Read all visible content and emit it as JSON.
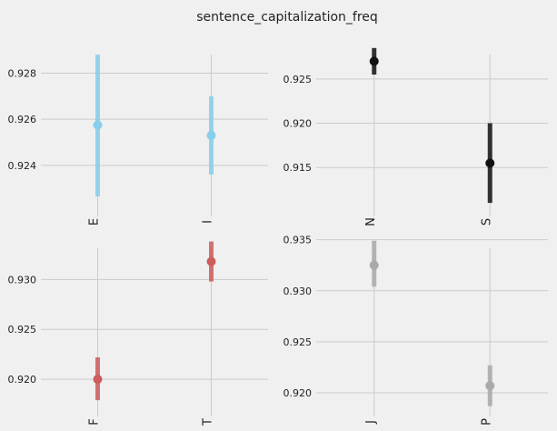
{
  "title": "sentence_capitalization_freq",
  "chart_data": [
    {
      "type": "point",
      "categories": [
        "E",
        "I"
      ],
      "series": [
        {
          "color": "#87ceeb",
          "values": [
            0.92575,
            0.9253
          ],
          "error_low": [
            0.92265,
            0.9236
          ],
          "error_high": [
            0.9288,
            0.927
          ]
        }
      ],
      "yticks": [
        0.924,
        0.926,
        0.928
      ],
      "ytick_labels": [
        "0.924",
        "0.926",
        "0.928"
      ],
      "ylim": [
        0.9221,
        0.9294
      ],
      "grid": true
    },
    {
      "type": "point",
      "categories": [
        "N",
        "S"
      ],
      "series": [
        {
          "color": "#111111",
          "values": [
            0.927,
            0.9155
          ],
          "error_low": [
            0.9255,
            0.911
          ],
          "error_high": [
            0.9285,
            0.92
          ]
        }
      ],
      "yticks": [
        0.915,
        0.92,
        0.925
      ],
      "ytick_labels": [
        "0.915",
        "0.920",
        "0.925"
      ],
      "ylim": [
        0.9103,
        0.9293
      ],
      "grid": true
    },
    {
      "type": "point",
      "categories": [
        "F",
        "T"
      ],
      "series": [
        {
          "color": "#cd5c5c",
          "values": [
            0.92,
            0.9318
          ],
          "error_low": [
            0.9179,
            0.9298
          ],
          "error_high": [
            0.9222,
            0.9338
          ]
        }
      ],
      "yticks": [
        0.92,
        0.925,
        0.93
      ],
      "ytick_labels": [
        "0.920",
        "0.925",
        "0.930"
      ],
      "ylim": [
        0.917,
        0.9345
      ],
      "grid": true
    },
    {
      "type": "point",
      "categories": [
        "J",
        "P"
      ],
      "series": [
        {
          "color": "#a9a9a9",
          "values": [
            0.9325,
            0.9207
          ],
          "error_low": [
            0.9304,
            0.9187
          ],
          "error_high": [
            0.9349,
            0.9227
          ]
        }
      ],
      "yticks": [
        0.92,
        0.925,
        0.93,
        0.935
      ],
      "ytick_labels": [
        "0.920",
        "0.925",
        "0.930",
        "0.935"
      ],
      "ylim": [
        0.9184,
        0.9355
      ],
      "grid": true
    }
  ]
}
